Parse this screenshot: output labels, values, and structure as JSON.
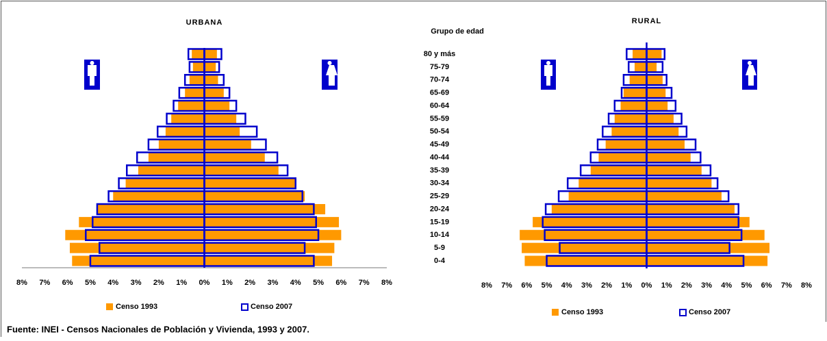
{
  "chart_data": [
    {
      "type": "pyramid",
      "title": "URBANA",
      "axis_line": true,
      "xlim": [
        -8,
        8
      ],
      "xticks": [
        {
          "value": -8,
          "label": "8%"
        },
        {
          "value": -7,
          "label": "7%"
        },
        {
          "value": -6,
          "label": "6%"
        },
        {
          "value": -5,
          "label": "5%"
        },
        {
          "value": -4,
          "label": "4%"
        },
        {
          "value": -3,
          "label": "3%"
        },
        {
          "value": -2,
          "label": "2%"
        },
        {
          "value": -1,
          "label": "1%"
        },
        {
          "value": 0,
          "label": "0%"
        },
        {
          "value": 1,
          "label": "1%"
        },
        {
          "value": 2,
          "label": "2%"
        },
        {
          "value": 3,
          "label": "3%"
        },
        {
          "value": 4,
          "label": "4%"
        },
        {
          "value": 5,
          "label": "5%"
        },
        {
          "value": 6,
          "label": "6%"
        },
        {
          "value": 7,
          "label": "7%"
        },
        {
          "value": 8,
          "label": "8%"
        }
      ],
      "series": [
        {
          "name": "Censo 1993",
          "color": "#ff9900",
          "style": "fill",
          "left": [
            5.8,
            5.9,
            6.1,
            5.5,
            4.7,
            4.0,
            3.45,
            2.9,
            2.45,
            2.0,
            1.7,
            1.45,
            1.15,
            0.85,
            0.65,
            0.5,
            0.55
          ],
          "right": [
            5.6,
            5.7,
            6.0,
            5.9,
            5.3,
            4.4,
            4.0,
            3.25,
            2.65,
            2.05,
            1.55,
            1.4,
            1.1,
            0.85,
            0.6,
            0.5,
            0.55
          ]
        },
        {
          "name": "Censo 2007",
          "color": "#0000cc",
          "style": "outline",
          "left": [
            5.0,
            4.6,
            5.2,
            4.9,
            4.7,
            4.2,
            3.75,
            3.4,
            2.95,
            2.45,
            2.05,
            1.65,
            1.35,
            1.1,
            0.85,
            0.65,
            0.7
          ],
          "right": [
            4.8,
            4.4,
            5.0,
            4.9,
            4.8,
            4.3,
            4.0,
            3.65,
            3.2,
            2.7,
            2.3,
            1.8,
            1.4,
            1.1,
            0.85,
            0.65,
            0.75
          ]
        }
      ]
    },
    {
      "type": "pyramid",
      "title": "RURAL",
      "y_label": "Grupo de edad",
      "axis_line": false,
      "categories": [
        "0-4",
        "5-9",
        "10-14",
        "15-19",
        "20-24",
        "25-29",
        "30-34",
        "35-39",
        "40-44",
        "45-49",
        "50-54",
        "55-59",
        "60-64",
        "65-69",
        "70-74",
        "75-79",
        "80 y más"
      ],
      "xlim": [
        -8,
        8
      ],
      "xticks": [
        {
          "value": -8,
          "label": "8%"
        },
        {
          "value": -7,
          "label": "7%"
        },
        {
          "value": -6,
          "label": "6%"
        },
        {
          "value": -5,
          "label": "5%"
        },
        {
          "value": -4,
          "label": "4%"
        },
        {
          "value": -3,
          "label": "3%"
        },
        {
          "value": -2,
          "label": "2%"
        },
        {
          "value": -1,
          "label": "1%"
        },
        {
          "value": 0,
          "label": "0%"
        },
        {
          "value": 1,
          "label": "1%"
        },
        {
          "value": 2,
          "label": "2%"
        },
        {
          "value": 3,
          "label": "3%"
        },
        {
          "value": 4,
          "label": "4%"
        },
        {
          "value": 5,
          "label": "5%"
        },
        {
          "value": 6,
          "label": "6%"
        },
        {
          "value": 7,
          "label": "7%"
        },
        {
          "value": 8,
          "label": "8%"
        }
      ],
      "series": [
        {
          "name": "Censo 1993",
          "color": "#ff9900",
          "style": "fill",
          "left": [
            6.1,
            6.25,
            6.35,
            5.7,
            4.75,
            3.9,
            3.4,
            2.8,
            2.4,
            2.05,
            1.75,
            1.6,
            1.3,
            1.15,
            0.85,
            0.6,
            0.7
          ],
          "right": [
            6.05,
            6.15,
            5.9,
            5.15,
            4.4,
            3.75,
            3.25,
            2.75,
            2.2,
            1.9,
            1.6,
            1.35,
            1.05,
            0.95,
            0.8,
            0.5,
            0.75
          ]
        },
        {
          "name": "Censo 2007",
          "color": "#0000cc",
          "style": "outline",
          "left": [
            5.0,
            4.35,
            5.1,
            5.2,
            5.05,
            4.4,
            3.95,
            3.3,
            2.8,
            2.45,
            2.2,
            1.9,
            1.6,
            1.25,
            1.15,
            0.9,
            1.0
          ],
          "right": [
            4.85,
            4.15,
            4.75,
            4.6,
            4.6,
            4.1,
            3.55,
            3.2,
            2.7,
            2.45,
            2.0,
            1.75,
            1.45,
            1.25,
            1.0,
            0.8,
            0.9
          ]
        }
      ]
    }
  ],
  "source": "Fuente: INEI - Censos Nacionales de Población y Vivienda, 1993 y 2007."
}
